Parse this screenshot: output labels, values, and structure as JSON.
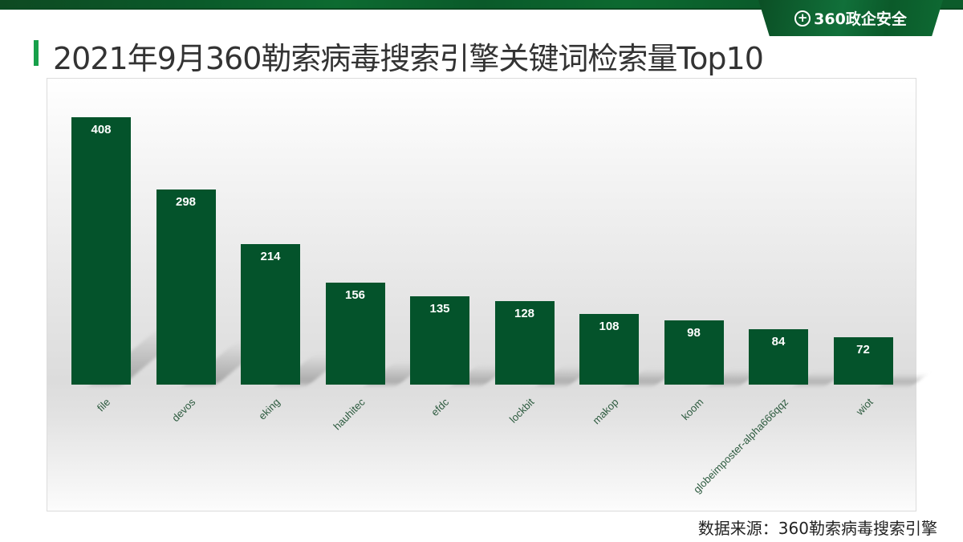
{
  "header": {
    "logo_glyph": "+",
    "logo_text": "360政企安全",
    "title": "2021年9月360勒索病毒搜索引擎关键词检索量Top10"
  },
  "footer": {
    "source": "数据来源：360勒索病毒搜索引擎"
  },
  "colors": {
    "bar": "#04532b",
    "accent": "#17a04a",
    "label": "#2c5a3e"
  },
  "chart_data": {
    "type": "bar",
    "title": "2021年9月360勒索病毒搜索引擎关键词检索量Top10",
    "categories": [
      "file",
      "devos",
      "eking",
      "hauhitec",
      "efdc",
      "lockbit",
      "makop",
      "koom",
      "globeimposter-alpha666qqz",
      "wiot"
    ],
    "values": [
      408,
      298,
      214,
      156,
      135,
      128,
      108,
      98,
      84,
      72
    ],
    "xlabel": "",
    "ylabel": "",
    "ylim": [
      0,
      408
    ],
    "grid": false,
    "data_labels": true,
    "legend": null,
    "x_tick_rotation": -45,
    "source": "数据来源：360勒索病毒搜索引擎"
  }
}
